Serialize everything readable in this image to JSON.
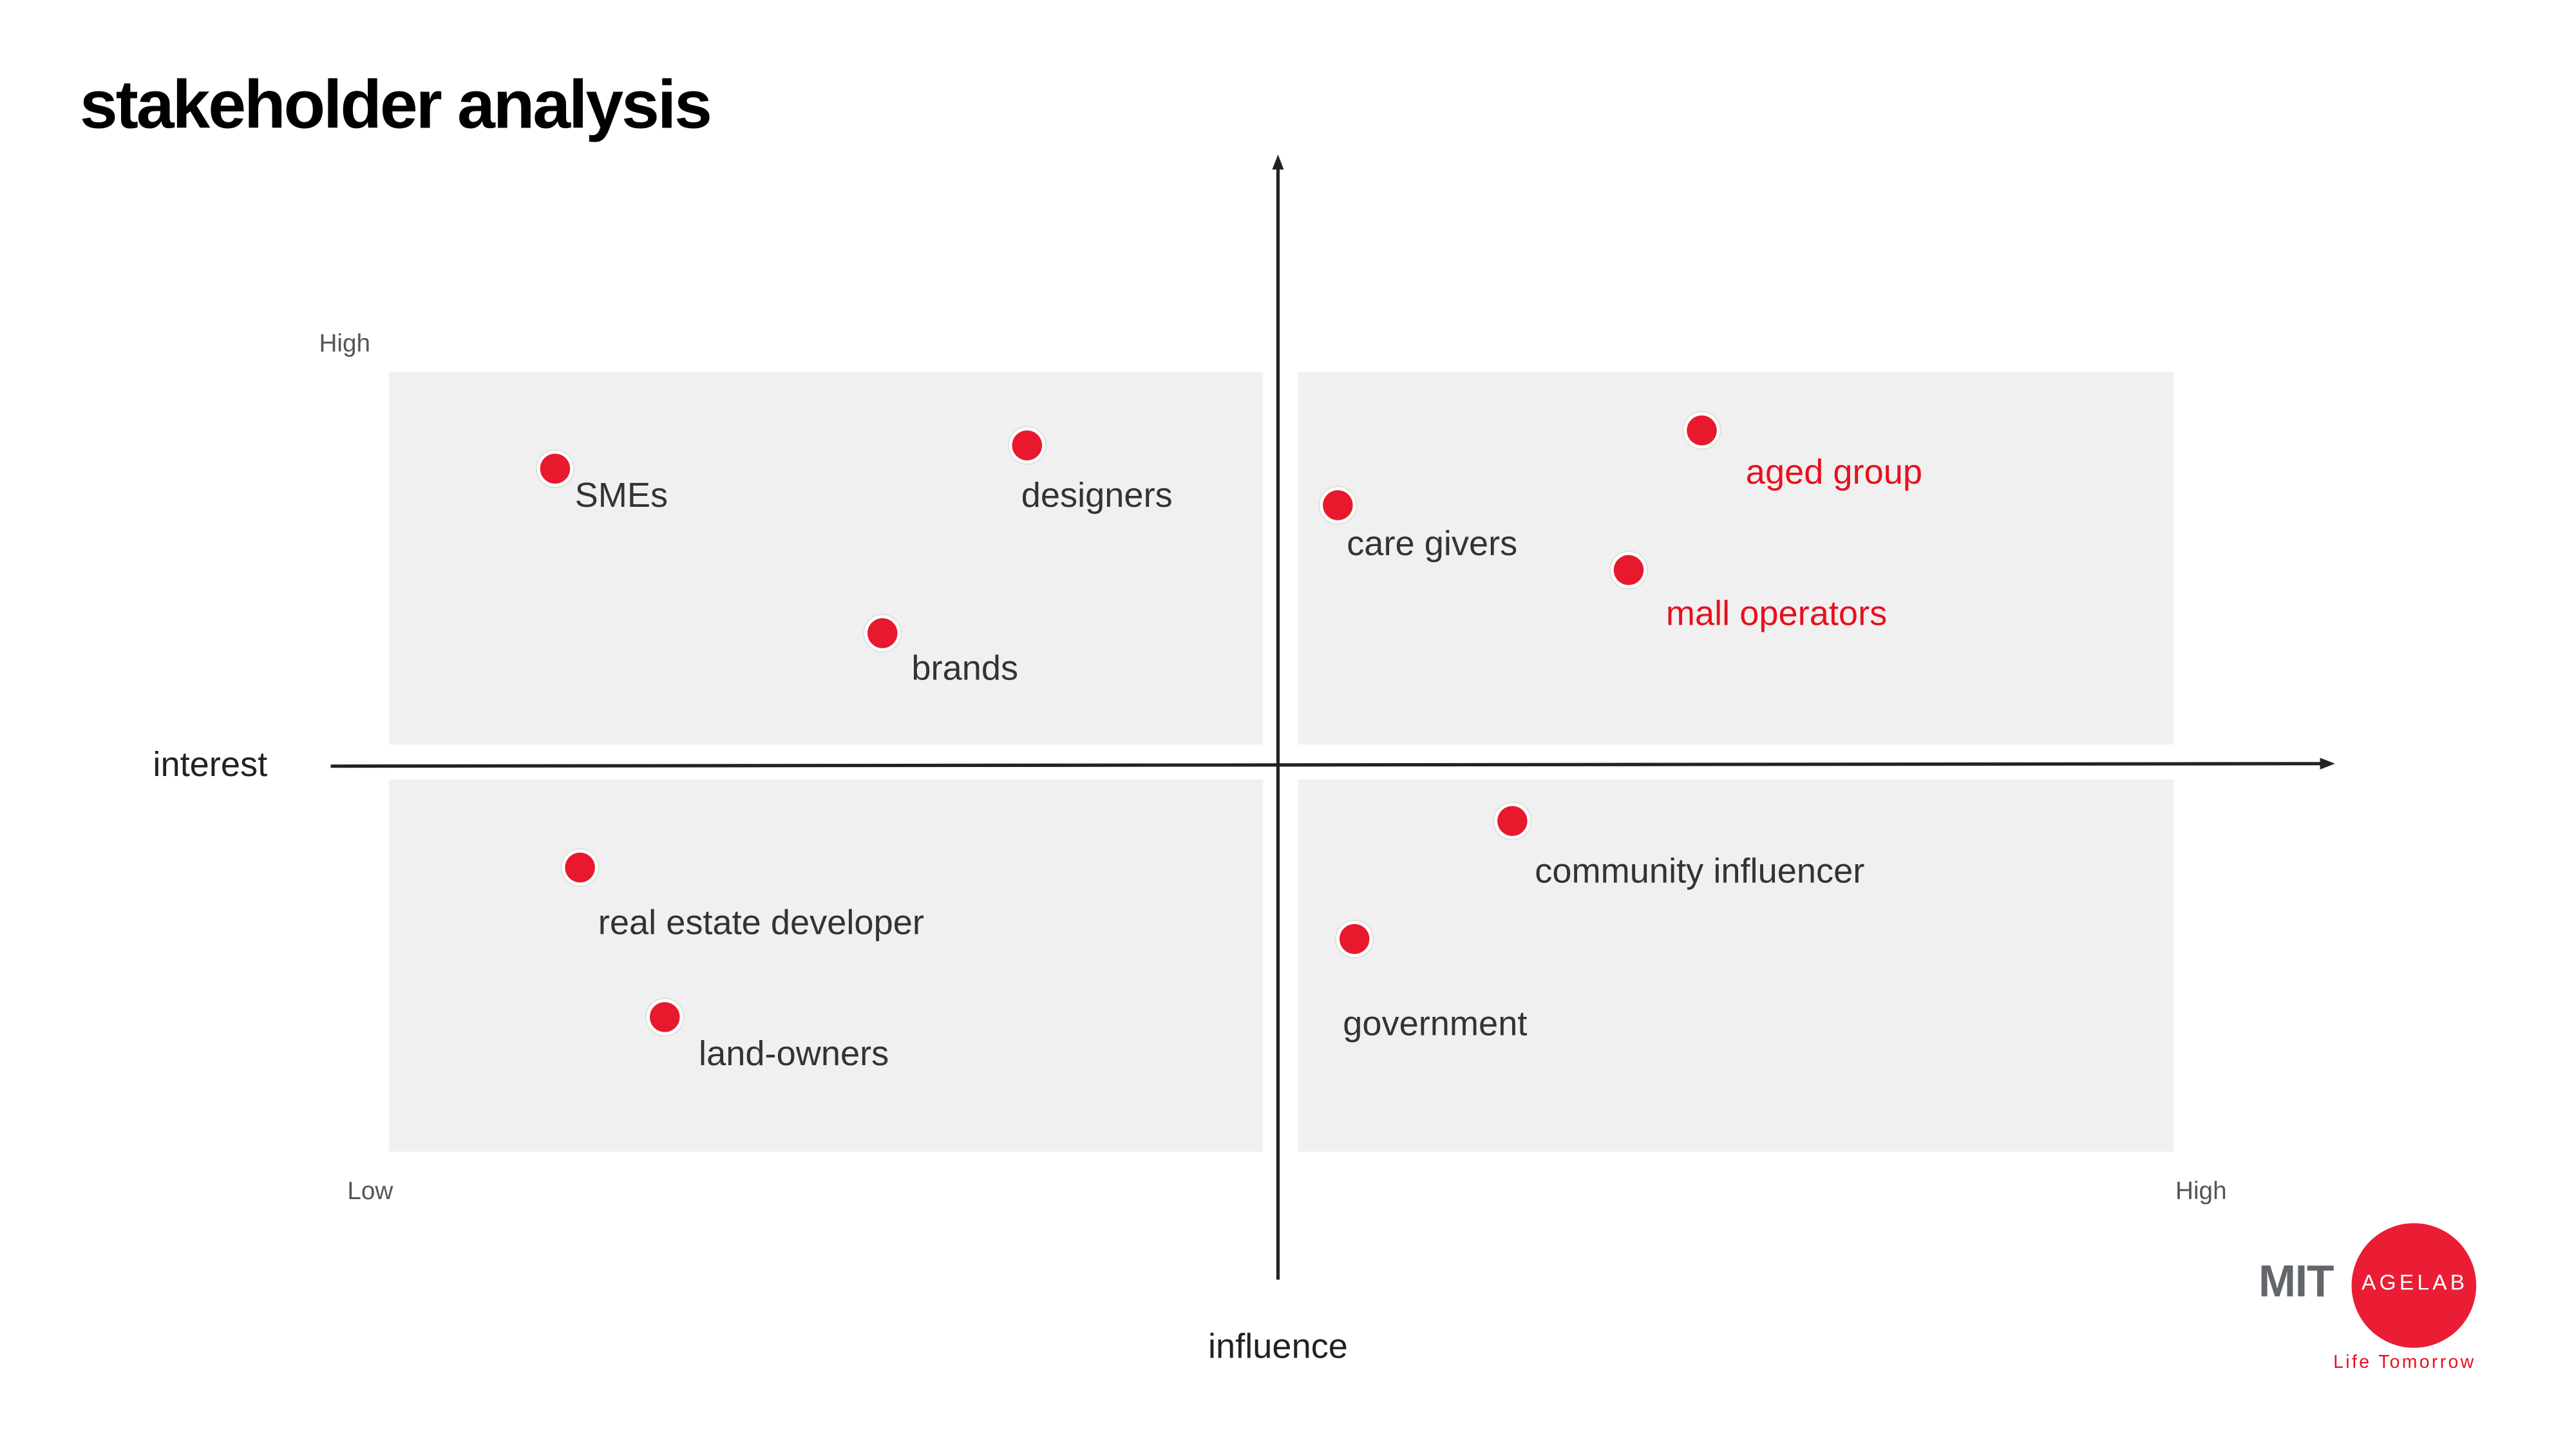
{
  "title": "stakeholder analysis",
  "logo": {
    "mit": "MIT",
    "agelab": "AGELAB",
    "tagline": "Life Tomorrow"
  },
  "colors": {
    "dot": "#e8192c",
    "highlight_label": "#e8101e",
    "quadrant": "#f0f0f0"
  },
  "chart_data": {
    "type": "scatter",
    "title": "stakeholder analysis",
    "xlabel": "influence",
    "ylabel": "interest",
    "xlim": [
      0,
      100
    ],
    "ylim": [
      0,
      100
    ],
    "tick_labels": {
      "y_high": "High",
      "low": "Low",
      "x_high": "High"
    },
    "points": [
      {
        "label": "SMEs",
        "x": 9.3,
        "y": 87.6,
        "highlight": false
      },
      {
        "label": "designers",
        "x": 35.8,
        "y": 90.6,
        "highlight": false
      },
      {
        "label": "brands",
        "x": 27.7,
        "y": 66.5,
        "highlight": false
      },
      {
        "label": "care givers",
        "x": 53.2,
        "y": 82.9,
        "highlight": false
      },
      {
        "label": "aged group",
        "x": 73.6,
        "y": 92.5,
        "highlight": true
      },
      {
        "label": "mall operators",
        "x": 69.5,
        "y": 74.6,
        "highlight": true
      },
      {
        "label": "community influencer",
        "x": 62.9,
        "y": 42.4,
        "highlight": false
      },
      {
        "label": "government",
        "x": 54.1,
        "y": 27.3,
        "highlight": false
      },
      {
        "label": "real estate developer",
        "x": 10.7,
        "y": 36.5,
        "highlight": false
      },
      {
        "label": "land-owners",
        "x": 15.5,
        "y": 17.3,
        "highlight": false
      }
    ]
  }
}
